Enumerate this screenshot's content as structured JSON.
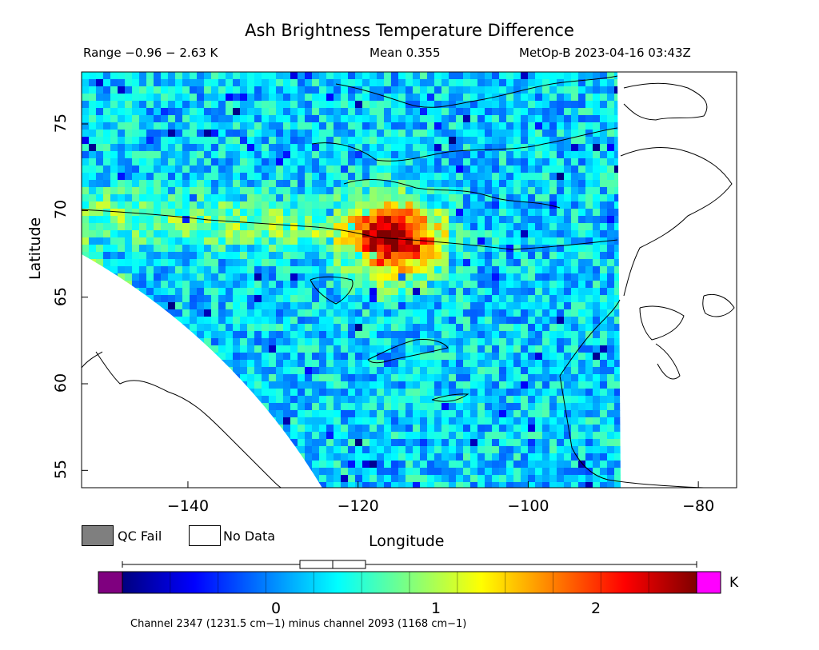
{
  "header": {
    "title": "Ash Brightness Temperature Difference",
    "range": "Range −0.96 − 2.63 K",
    "mean": "Mean 0.355",
    "satellite": "MetOp-B 2023-04-16 03:43Z"
  },
  "axes": {
    "xlabel": "Longitude",
    "ylabel": "Latitude",
    "xticks": [
      "−140",
      "−120",
      "−100",
      "−80"
    ],
    "yticks": [
      "55",
      "60",
      "65",
      "70",
      "75"
    ],
    "lon_range": [
      -152.5,
      -75.5
    ],
    "lat_range": [
      54,
      78
    ]
  },
  "legend": {
    "qc_fail": "QC Fail",
    "no_data": "No Data",
    "qc_color": "#7f7f7f",
    "no_data_color": "#ffffff"
  },
  "colorbar": {
    "unit": "K",
    "ticks": [
      "0",
      "1",
      "2"
    ],
    "tick_values": [
      0,
      1,
      2
    ],
    "min": -0.96,
    "max": 2.63,
    "under_color": "#7f007f",
    "over_color": "#ff00ff",
    "colormap": [
      "#00007f",
      "#0000ff",
      "#007fff",
      "#00ffff",
      "#7fff7f",
      "#ffff00",
      "#ff7f00",
      "#ff0000",
      "#7f0000"
    ],
    "boxplot": {
      "whisker_low": -0.96,
      "q1": 0.15,
      "median": 0.355,
      "q3": 0.56,
      "whisker_high": 2.63
    }
  },
  "footer": "Channel 2347 (1231.5 cm−1) minus channel 2093 (1168 cm−1)",
  "chart_data": {
    "type": "heatmap",
    "title": "Ash Brightness Temperature Difference",
    "xlabel": "Longitude",
    "ylabel": "Latitude",
    "xlim": [
      -152.5,
      -75.5
    ],
    "ylim": [
      54,
      78
    ],
    "value_range": [
      -0.96,
      2.63
    ],
    "mean": 0.355,
    "unit": "K",
    "swath": "valid data between western arc edge and about −89° longitude",
    "notable_max": {
      "lon": -116.5,
      "lat": 68.5,
      "value": 2.6
    }
  }
}
